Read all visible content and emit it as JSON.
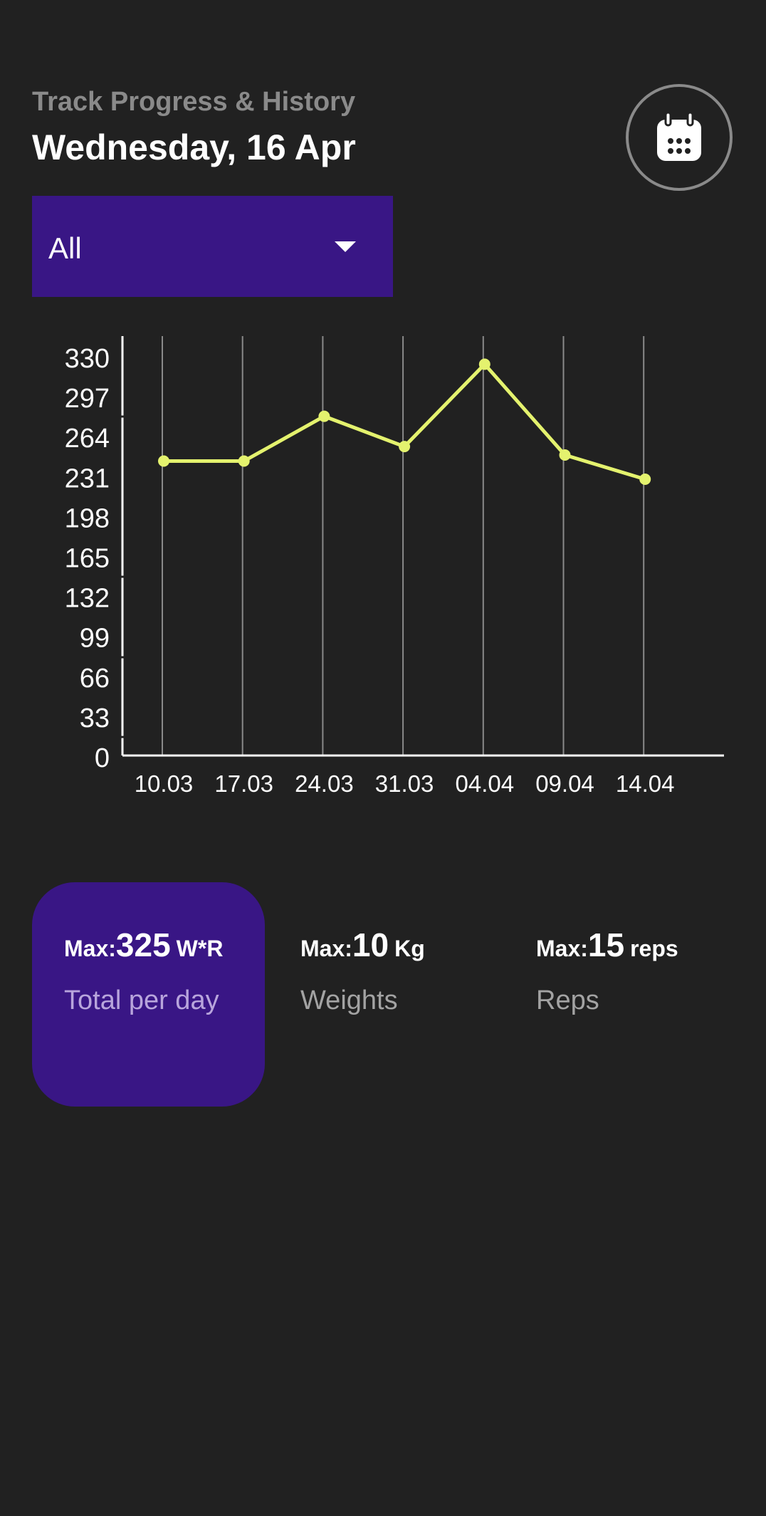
{
  "header": {
    "subtitle": "Track Progress & History",
    "title": "Wednesday, 16 Apr",
    "calendar_icon": "calendar-icon"
  },
  "filter": {
    "selected": "All",
    "arrow_icon": "caret-down-icon"
  },
  "chart_data": {
    "type": "line",
    "x": [
      "10.03",
      "17.03",
      "24.03",
      "31.03",
      "04.04",
      "09.04",
      "14.04"
    ],
    "y_ticks": [
      "0",
      "33",
      "66",
      "99",
      "132",
      "165",
      "198",
      "231",
      "264",
      "297",
      "330"
    ],
    "values": [
      245,
      245,
      282,
      257,
      325,
      250,
      230
    ],
    "ylim": [
      0,
      330
    ],
    "grid": "vertical",
    "line_color": "#e4f26e"
  },
  "stats": {
    "total": {
      "prefix": "Max:",
      "value": "325",
      "unit": "W*R",
      "label": "Total per day"
    },
    "weights": {
      "prefix": "Max:",
      "value": "10",
      "unit": "Kg",
      "label": "Weights"
    },
    "reps": {
      "prefix": "Max:",
      "value": "15",
      "unit": "reps",
      "label": "Reps"
    }
  },
  "colors": {
    "background": "#212121",
    "accent": "#391685",
    "line": "#e4f26e"
  }
}
